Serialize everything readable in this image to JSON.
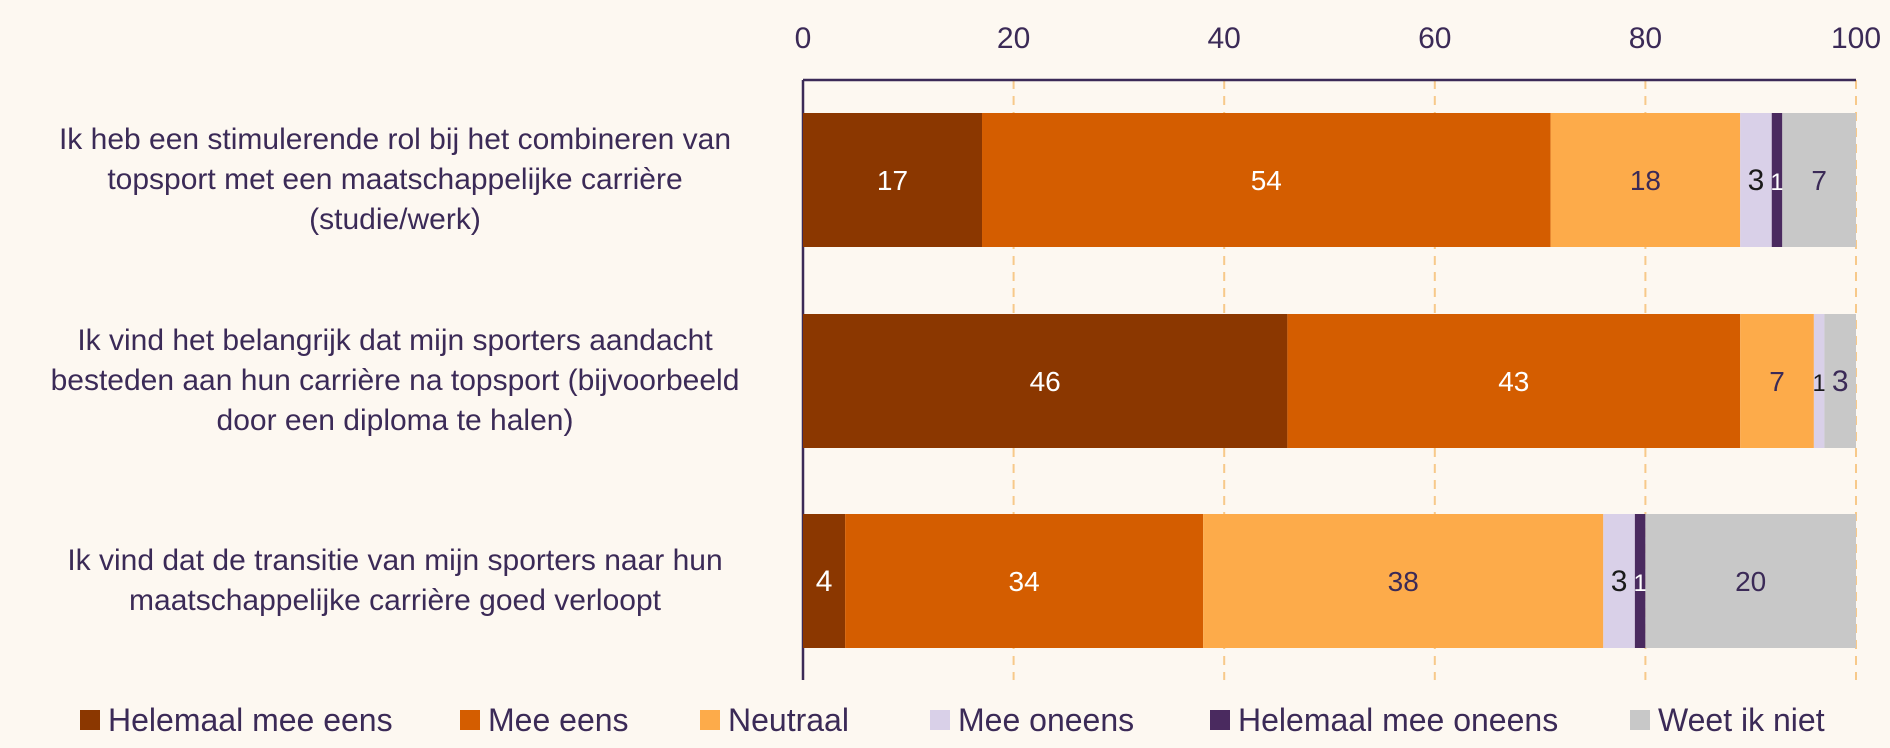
{
  "chart_data": {
    "type": "bar",
    "orientation": "horizontal",
    "stacked": true,
    "categories": [
      "Ik heb een stimulerende rol bij het combineren van\ntopsport met een maatschappelijke carrière\n(studie/werk)",
      "Ik vind het belangrijk dat mijn sporters aandacht\nbesteden aan hun carrière na topsport (bijvoorbeeld\ndoor een diploma te halen)",
      "Ik vind dat de transitie van mijn sporters naar hun\nmaatschappelijke carrière goed verloopt"
    ],
    "series": [
      {
        "name": "Helemaal mee eens",
        "color": "#8b3700",
        "label_color": "#ffffff",
        "values": [
          17,
          46,
          4
        ]
      },
      {
        "name": "Mee eens",
        "color": "#d45d00",
        "label_color": "#ffffff",
        "values": [
          54,
          43,
          34
        ]
      },
      {
        "name": "Neutraal",
        "color": "#fdab4a",
        "label_color": "#3b2a57",
        "values": [
          18,
          7,
          38
        ]
      },
      {
        "name": "Mee oneens",
        "color": "#d9d0e8",
        "label_color": "#1a1a1a",
        "values": [
          3,
          1,
          3
        ]
      },
      {
        "name": "Helemaal mee oneens",
        "color": "#4a2a5f",
        "label_color": "#ffffff",
        "values": [
          1,
          0,
          1
        ]
      },
      {
        "name": "Weet ik niet",
        "color": "#c8c8c8",
        "label_color": "#3b2a57",
        "values": [
          7,
          3,
          20
        ]
      }
    ],
    "xlim": [
      0,
      100
    ],
    "xticks": [
      "0",
      "20",
      "40",
      "60",
      "80",
      "100"
    ],
    "grid": true,
    "legend_position": "bottom",
    "axis_color": "#3b2a57",
    "grid_color": "#f7c98a"
  }
}
